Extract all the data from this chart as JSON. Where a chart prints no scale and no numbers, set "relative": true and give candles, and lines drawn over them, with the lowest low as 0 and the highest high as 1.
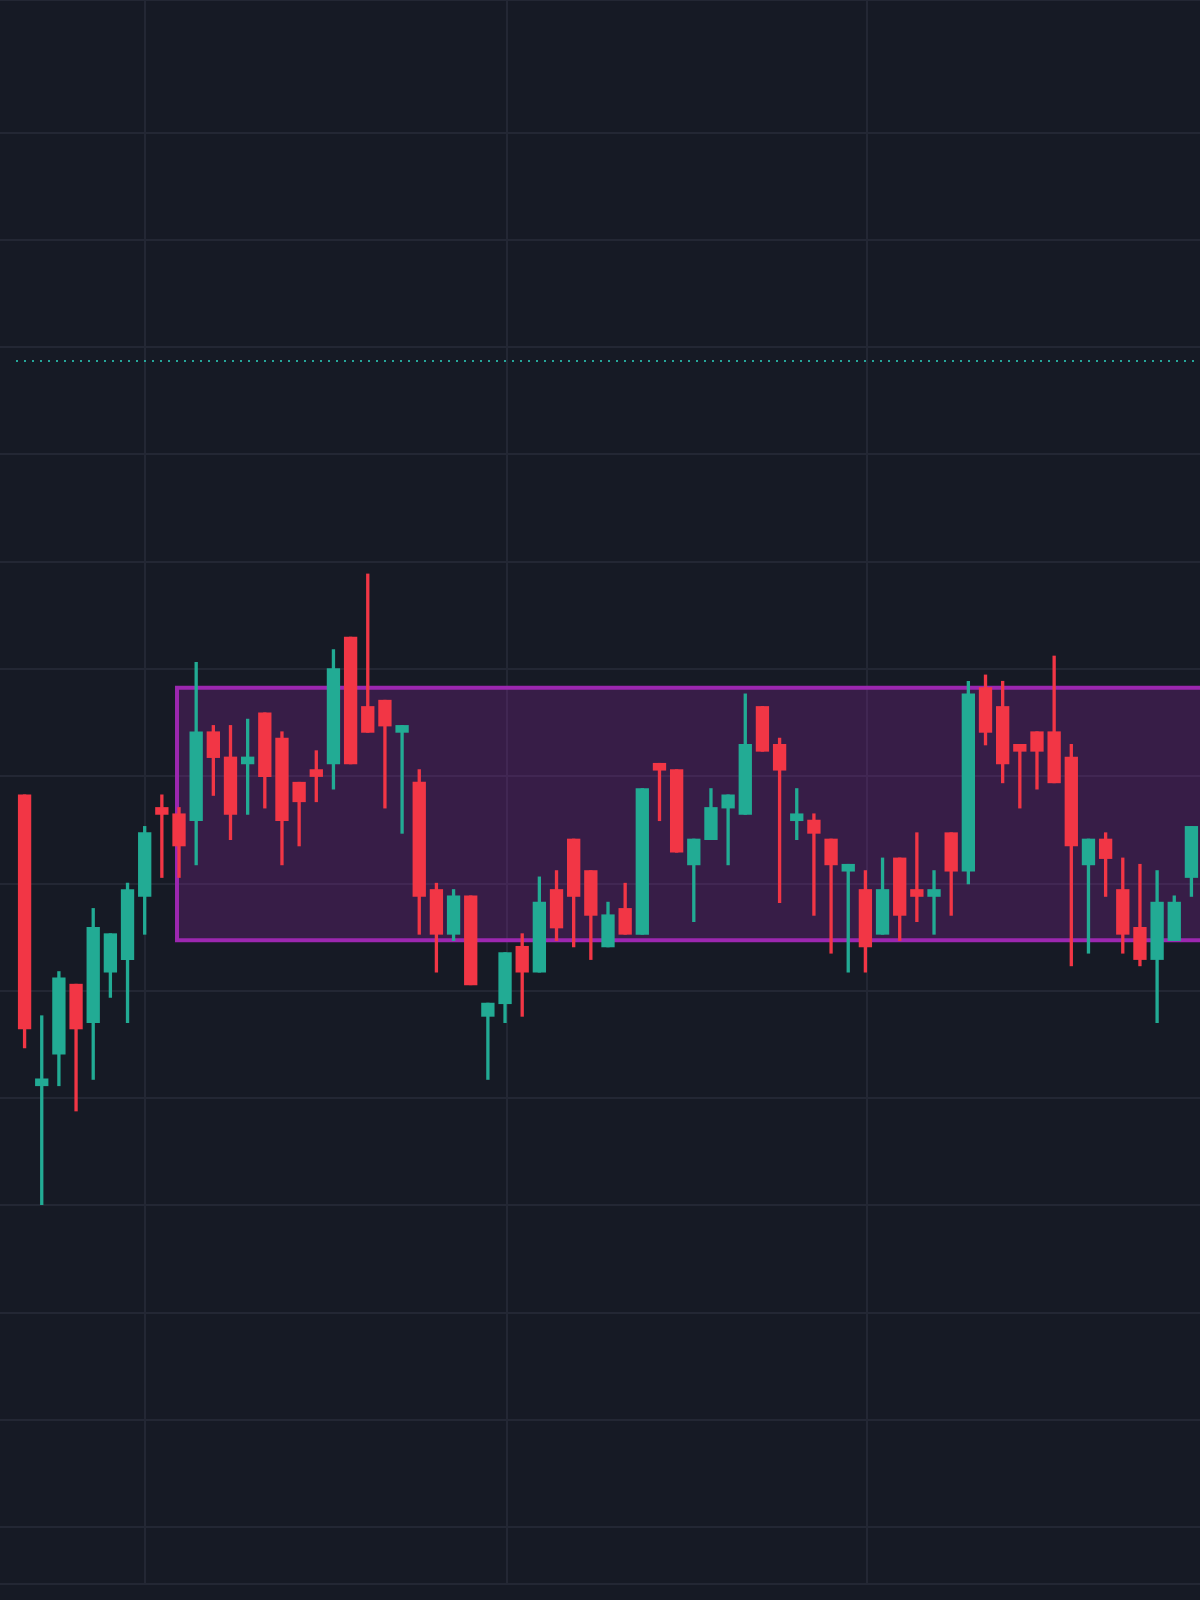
{
  "chart_data": {
    "type": "candlestick",
    "relative": true,
    "grid": true,
    "categories": [
      null,
      null,
      null,
      null,
      null,
      null,
      null,
      null,
      null,
      null,
      null,
      null,
      null,
      null,
      null,
      null,
      null,
      null,
      null,
      null,
      null,
      null,
      null,
      null,
      null,
      null,
      null,
      null,
      null,
      null,
      null,
      null,
      null,
      null,
      null,
      null,
      null,
      null,
      null,
      null,
      null,
      null,
      null,
      null,
      null,
      null,
      null,
      null,
      null,
      null,
      null,
      null,
      null,
      null,
      null,
      null,
      null,
      null,
      null,
      null,
      null,
      null,
      null,
      null,
      null,
      null,
      null,
      null,
      null
    ],
    "ohlc": [
      [
        0.65,
        0.65,
        0.25,
        0.28
      ],
      [
        0.19,
        0.3,
        0.0,
        0.2
      ],
      [
        0.24,
        0.37,
        0.19,
        0.36
      ],
      [
        0.35,
        0.35,
        0.15,
        0.28
      ],
      [
        0.29,
        0.47,
        0.2,
        0.44
      ],
      [
        0.37,
        0.43,
        0.33,
        0.43
      ],
      [
        0.39,
        0.51,
        0.29,
        0.5
      ],
      [
        0.49,
        0.6,
        0.43,
        0.59
      ],
      [
        0.63,
        0.65,
        0.52,
        0.62
      ],
      [
        0.62,
        0.63,
        0.52,
        0.57
      ],
      [
        0.61,
        0.86,
        0.54,
        0.75
      ],
      [
        0.75,
        0.76,
        0.65,
        0.71
      ],
      [
        0.71,
        0.76,
        0.58,
        0.62
      ],
      [
        0.7,
        0.77,
        0.62,
        0.71
      ],
      [
        0.78,
        0.78,
        0.63,
        0.68
      ],
      [
        0.74,
        0.75,
        0.54,
        0.61
      ],
      [
        0.67,
        0.67,
        0.57,
        0.64
      ],
      [
        0.69,
        0.72,
        0.64,
        0.68
      ],
      [
        0.7,
        0.88,
        0.66,
        0.85
      ],
      [
        0.9,
        0.9,
        0.7,
        0.7
      ],
      [
        0.79,
        1.0,
        0.75,
        0.75
      ],
      [
        0.8,
        0.8,
        0.63,
        0.76
      ],
      [
        0.75,
        0.76,
        0.59,
        0.76
      ],
      [
        0.67,
        0.69,
        0.43,
        0.49
      ],
      [
        0.5,
        0.51,
        0.37,
        0.43
      ],
      [
        0.43,
        0.5,
        0.42,
        0.49
      ],
      [
        0.49,
        0.49,
        0.35,
        0.35
      ],
      [
        0.3,
        0.32,
        0.2,
        0.32
      ],
      [
        0.32,
        0.4,
        0.29,
        0.4
      ],
      [
        0.41,
        0.43,
        0.3,
        0.37
      ],
      [
        0.37,
        0.52,
        0.37,
        0.48
      ],
      [
        0.5,
        0.53,
        0.42,
        0.44
      ],
      [
        0.58,
        0.58,
        0.41,
        0.49
      ],
      [
        0.53,
        0.53,
        0.39,
        0.46
      ],
      [
        0.41,
        0.48,
        0.41,
        0.46
      ],
      [
        0.47,
        0.51,
        0.43,
        0.43
      ],
      [
        0.43,
        0.66,
        0.43,
        0.66
      ],
      [
        0.7,
        0.7,
        0.61,
        0.69
      ],
      [
        0.69,
        0.69,
        0.56,
        0.56
      ],
      [
        0.54,
        0.58,
        0.45,
        0.58
      ],
      [
        0.58,
        0.66,
        0.58,
        0.63
      ],
      [
        0.63,
        0.65,
        0.54,
        0.65
      ],
      [
        0.62,
        0.81,
        0.62,
        0.73
      ],
      [
        0.79,
        0.79,
        0.72,
        0.72
      ],
      [
        0.73,
        0.74,
        0.48,
        0.69
      ],
      [
        0.61,
        0.66,
        0.58,
        0.62
      ],
      [
        0.61,
        0.62,
        0.46,
        0.59
      ],
      [
        0.58,
        0.58,
        0.4,
        0.54
      ],
      [
        0.53,
        0.54,
        0.37,
        0.54
      ],
      [
        0.5,
        0.53,
        0.37,
        0.41
      ],
      [
        0.43,
        0.55,
        0.43,
        0.5
      ],
      [
        0.55,
        0.55,
        0.42,
        0.46
      ],
      [
        0.5,
        0.59,
        0.45,
        0.49
      ],
      [
        0.49,
        0.53,
        0.43,
        0.5
      ],
      [
        0.59,
        0.59,
        0.46,
        0.53
      ],
      [
        0.53,
        0.83,
        0.51,
        0.81
      ],
      [
        0.82,
        0.84,
        0.73,
        0.75
      ],
      [
        0.79,
        0.83,
        0.67,
        0.7
      ],
      [
        0.73,
        0.73,
        0.63,
        0.72
      ],
      [
        0.75,
        0.75,
        0.66,
        0.72
      ],
      [
        0.75,
        0.87,
        0.67,
        0.67
      ],
      [
        0.71,
        0.73,
        0.38,
        0.57
      ],
      [
        0.54,
        0.58,
        0.4,
        0.58
      ],
      [
        0.58,
        0.59,
        0.49,
        0.55
      ],
      [
        0.5,
        0.55,
        0.4,
        0.43
      ],
      [
        0.44,
        0.54,
        0.38,
        0.39
      ],
      [
        0.39,
        0.53,
        0.29,
        0.48
      ],
      [
        0.42,
        0.49,
        0.42,
        0.48
      ],
      [
        0.52,
        0.6,
        0.49,
        0.6
      ]
    ],
    "colors": [
      "#f23645",
      "#22ab94",
      "#22ab94",
      "#f23645",
      "#22ab94",
      "#22ab94",
      "#22ab94",
      "#22ab94",
      "#f23645",
      "#f23645",
      "#22ab94",
      "#f23645",
      "#f23645",
      "#22ab94",
      "#f23645",
      "#f23645",
      "#f23645",
      "#f23645",
      "#22ab94",
      "#f23645",
      "#f23645",
      "#f23645",
      "#22ab94",
      "#f23645",
      "#f23645",
      "#22ab94",
      "#f23645",
      "#22ab94",
      "#22ab94",
      "#f23645",
      "#22ab94",
      "#f23645",
      "#f23645",
      "#f23645",
      "#22ab94",
      "#f23645",
      "#22ab94",
      "#f23645",
      "#f23645",
      "#22ab94",
      "#22ab94",
      "#22ab94",
      "#22ab94",
      "#f23645",
      "#f23645",
      "#22ab94",
      "#f23645",
      "#f23645",
      "#22ab94",
      "#f23645",
      "#22ab94",
      "#f23645",
      "#f23645",
      "#22ab94",
      "#f23645",
      "#22ab94",
      "#f23645",
      "#f23645",
      "#f23645",
      "#f23645",
      "#f23645",
      "#f23645",
      "#22ab94",
      "#f23645",
      "#f23645",
      "#f23645",
      "#22ab94",
      "#22ab94",
      "#22ab94"
    ],
    "bands": [
      {
        "axis": "y",
        "from": 0.42,
        "to": 0.82,
        "color": "#9c27b0"
      }
    ],
    "ref_lines": [
      {
        "axis": "y",
        "value": 1.34,
        "color": "#26a69a",
        "line_style": "dotted"
      }
    ]
  }
}
